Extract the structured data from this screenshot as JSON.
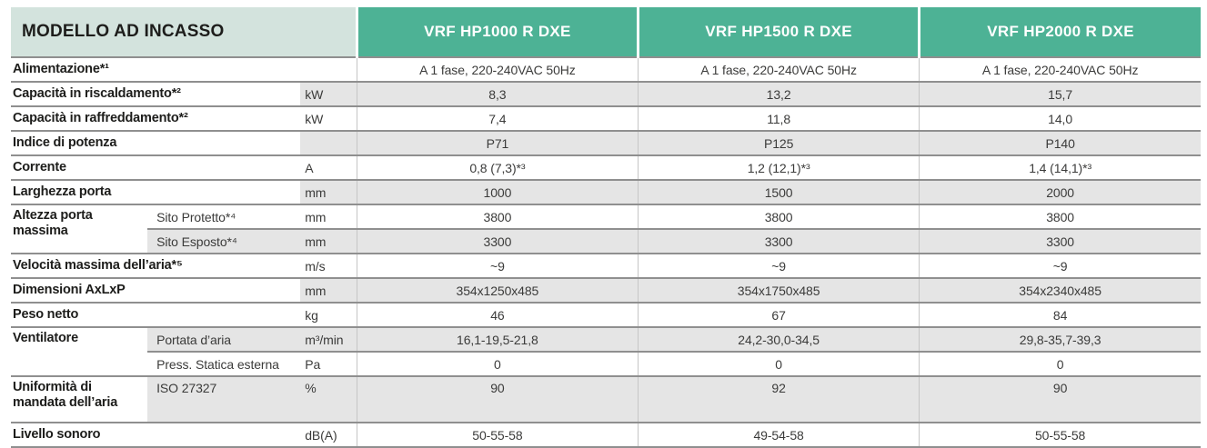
{
  "table": {
    "title": "MODELLO AD INCASSO",
    "models": [
      "VRF HP1000 R DXE",
      "VRF HP1500 R DXE",
      "VRF HP2000 R DXE"
    ],
    "colors": {
      "header_teal": "#4db295",
      "header_pale_green": "#d3e3dd",
      "shaded_row_gray": "#e5e5e5",
      "border_gray": "#8f8f8f"
    },
    "rows": [
      {
        "label": "Alimentazione*¹",
        "unit": "",
        "values": [
          "A 1 fase, 220-240VAC 50Hz",
          "A 1 fase, 220-240VAC 50Hz",
          "A 1 fase, 220-240VAC 50Hz"
        ]
      },
      {
        "label": "Capacità in riscaldamento*²",
        "unit": "kW",
        "values": [
          "8,3",
          "13,2",
          "15,7"
        ]
      },
      {
        "label": "Capacità in raffreddamento*²",
        "unit": "kW",
        "values": [
          "7,4",
          "11,8",
          "14,0"
        ]
      },
      {
        "label": "Indice di potenza",
        "unit": "",
        "values": [
          "P71",
          "P125",
          "P140"
        ]
      },
      {
        "label": "Corrente",
        "unit": "A",
        "values": [
          "0,8 (7,3)*³",
          "1,2 (12,1)*³",
          "1,4 (14,1)*³"
        ]
      },
      {
        "label": "Larghezza porta",
        "unit": "mm",
        "values": [
          "1000",
          "1500",
          "2000"
        ]
      },
      {
        "label": "Altezza porta massima",
        "sublabel": "Sito Protetto*⁴",
        "unit": "mm",
        "values": [
          "3800",
          "3800",
          "3800"
        ]
      },
      {
        "sublabel": "Sito Esposto*⁴",
        "unit": "mm",
        "values": [
          "3300",
          "3300",
          "3300"
        ]
      },
      {
        "label": "Velocità massima dell’aria*⁵",
        "unit": "m/s",
        "values": [
          "~9",
          "~9",
          "~9"
        ]
      },
      {
        "label": "Dimensioni AxLxP",
        "unit": "mm",
        "values": [
          "354x1250x485",
          "354x1750x485",
          "354x2340x485"
        ]
      },
      {
        "label": "Peso netto",
        "unit": "kg",
        "values": [
          "46",
          "67",
          "84"
        ]
      },
      {
        "label": "Ventilatore",
        "sublabel": "Portata d’aria",
        "unit": "m³/min",
        "values": [
          "16,1-19,5-21,8",
          "24,2-30,0-34,5",
          "29,8-35,7-39,3"
        ]
      },
      {
        "sublabel": "Press. Statica esterna",
        "unit": "Pa",
        "values": [
          "0",
          "0",
          "0"
        ]
      },
      {
        "label": "Uniformità di mandata dell’aria",
        "sublabel": "ISO 27327",
        "unit": "%",
        "values": [
          "90",
          "92",
          "90"
        ]
      },
      {
        "label": "Livello sonoro",
        "unit": "dB(A)",
        "values": [
          "50-55-58",
          "49-54-58",
          "50-55-58"
        ]
      }
    ]
  }
}
